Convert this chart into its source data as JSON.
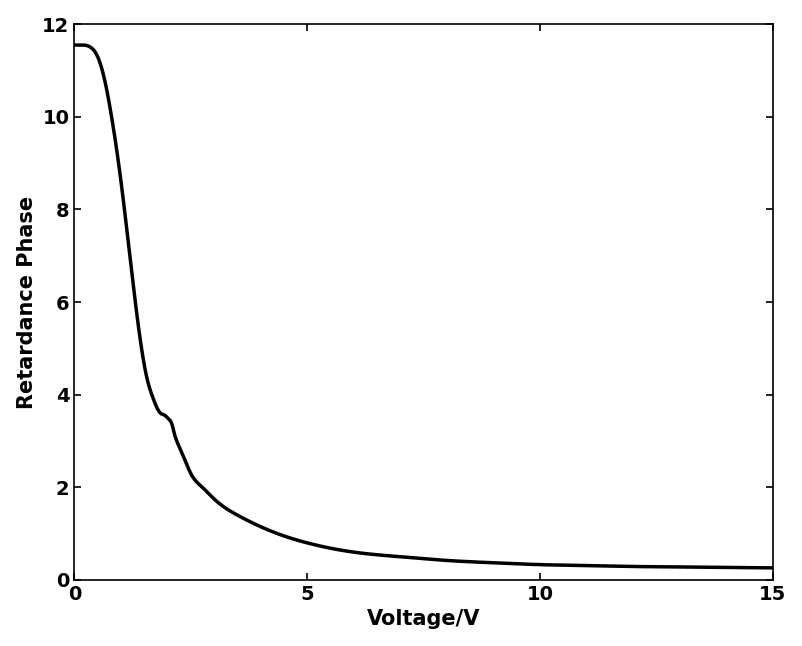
{
  "title": "",
  "xlabel": "Voltage/V",
  "ylabel": "Retardance Phase",
  "xlim": [
    0,
    15
  ],
  "ylim": [
    0,
    12
  ],
  "xticks": [
    0,
    5,
    10,
    15
  ],
  "yticks": [
    0,
    2,
    4,
    6,
    8,
    10,
    12
  ],
  "line_color": "#000000",
  "line_width": 2.5,
  "background_color": "#ffffff",
  "xlabel_fontsize": 15,
  "ylabel_fontsize": 15,
  "tick_fontsize": 14,
  "figsize": [
    8.03,
    6.46
  ],
  "dpi": 100,
  "curve_points": [
    [
      0.0,
      11.55
    ],
    [
      0.2,
      11.55
    ],
    [
      0.35,
      11.5
    ],
    [
      0.5,
      11.3
    ],
    [
      0.65,
      10.8
    ],
    [
      0.8,
      10.0
    ],
    [
      0.95,
      9.0
    ],
    [
      1.1,
      7.8
    ],
    [
      1.25,
      6.5
    ],
    [
      1.4,
      5.3
    ],
    [
      1.55,
      4.4
    ],
    [
      1.7,
      3.9
    ],
    [
      1.85,
      3.6
    ],
    [
      1.95,
      3.55
    ],
    [
      2.0,
      3.5
    ],
    [
      2.05,
      3.45
    ],
    [
      2.1,
      3.35
    ],
    [
      2.15,
      3.15
    ],
    [
      2.2,
      3.0
    ],
    [
      2.35,
      2.65
    ],
    [
      2.5,
      2.3
    ],
    [
      2.75,
      2.0
    ],
    [
      3.0,
      1.75
    ],
    [
      3.5,
      1.4
    ],
    [
      4.0,
      1.15
    ],
    [
      4.5,
      0.95
    ],
    [
      5.0,
      0.8
    ],
    [
      6.0,
      0.6
    ],
    [
      7.0,
      0.5
    ],
    [
      8.0,
      0.42
    ],
    [
      9.0,
      0.37
    ],
    [
      10.0,
      0.33
    ],
    [
      11.0,
      0.31
    ],
    [
      12.0,
      0.29
    ],
    [
      13.0,
      0.28
    ],
    [
      14.0,
      0.27
    ],
    [
      15.0,
      0.26
    ]
  ]
}
